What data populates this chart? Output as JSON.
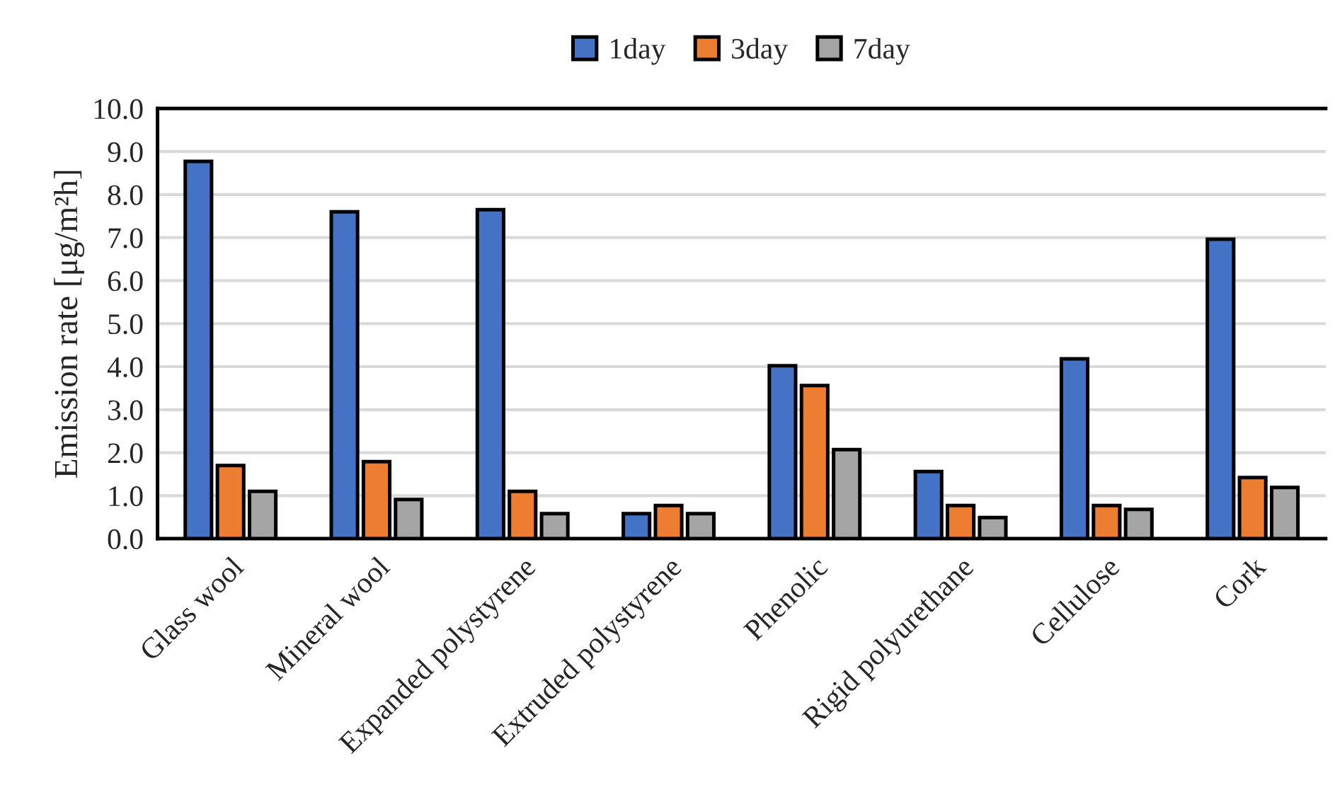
{
  "chart_data": {
    "type": "bar",
    "ylabel": "Emission rate [μg/m²h]",
    "categories": [
      "Glass wool",
      "Mineral wool",
      "Expanded polystyrene",
      "Extruded polystyrene",
      "Phenolic",
      "Rigid polyurethane",
      "Cellulose",
      "Cork"
    ],
    "series": [
      {
        "name": "1day",
        "color": "#4472c4",
        "values": [
          8.77,
          7.6,
          7.65,
          0.58,
          4.02,
          1.56,
          4.18,
          6.96
        ]
      },
      {
        "name": "3day",
        "color": "#ed7d31",
        "values": [
          1.7,
          1.79,
          1.1,
          0.77,
          3.56,
          0.77,
          0.77,
          1.42
        ]
      },
      {
        "name": "7day",
        "color": "#a5a5a5",
        "values": [
          1.1,
          0.91,
          0.58,
          0.58,
          2.07,
          0.49,
          0.68,
          1.19
        ]
      }
    ],
    "ylim": [
      0,
      10
    ],
    "yticks": [
      {
        "value": 0,
        "label": "0.0"
      },
      {
        "value": 1,
        "label": "1.0"
      },
      {
        "value": 2,
        "label": "2.0"
      },
      {
        "value": 3,
        "label": "3.0"
      },
      {
        "value": 4,
        "label": "4.0"
      },
      {
        "value": 5,
        "label": "5.0"
      },
      {
        "value": 6,
        "label": "6.0"
      },
      {
        "value": 7,
        "label": "7.0"
      },
      {
        "value": 8,
        "label": "8.0"
      },
      {
        "value": 9,
        "label": "9.0"
      },
      {
        "value": 10,
        "label": "10.0"
      }
    ],
    "grid": "y",
    "legend": "top"
  }
}
